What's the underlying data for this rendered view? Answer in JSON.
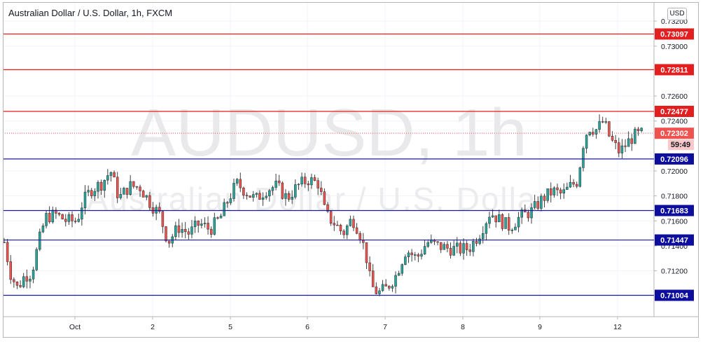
{
  "header": {
    "title": "Australian Dollar / U.S. Dollar, 1h, FXCM",
    "currency_badge": "USD"
  },
  "watermark": {
    "symbol": "AUDUSD, 1h",
    "name": "Australian Dollar / U.S. Dolla"
  },
  "countdown": "59:49",
  "colors": {
    "up_candle": "#26a69a",
    "down_candle": "#ef5350",
    "resistance_line": "#e31e1e",
    "support_line": "#1a1a9e",
    "current_price_line": "#ef5350",
    "grid": "#f0f3fa"
  },
  "chart_data": {
    "type": "candlestick",
    "title": "Australian Dollar / U.S. Dollar, 1h, FXCM",
    "x_axis": {
      "ticks": [
        "Oct",
        "2",
        "5",
        "6",
        "7",
        "8",
        "9",
        "12"
      ]
    },
    "y_axis": {
      "range": [
        0.7092,
        0.7325
      ],
      "ticks": [
        "0.73200",
        "0.73000",
        "0.72600",
        "0.72400",
        "0.72000",
        "0.71800",
        "0.71600",
        "0.71400",
        "0.71200"
      ]
    },
    "current_price": 0.72302,
    "current_price_label": "0.72302",
    "resistance_levels": [
      {
        "value": 0.73097,
        "label": "0.73097"
      },
      {
        "value": 0.72811,
        "label": "0.72811"
      },
      {
        "value": 0.72477,
        "label": "0.72477"
      }
    ],
    "support_levels": [
      {
        "value": 0.72096,
        "label": "0.72096"
      },
      {
        "value": 0.71683,
        "label": "0.71683"
      },
      {
        "value": 0.71447,
        "label": "0.71447"
      },
      {
        "value": 0.71004,
        "label": "0.71004"
      }
    ],
    "price_path": [
      {
        "x": 6,
        "p": 0.7143
      },
      {
        "x": 15,
        "p": 0.7118
      },
      {
        "x": 25,
        "p": 0.7106
      },
      {
        "x": 35,
        "p": 0.7116
      },
      {
        "x": 45,
        "p": 0.7118
      },
      {
        "x": 55,
        "p": 0.7142
      },
      {
        "x": 65,
        "p": 0.7163
      },
      {
        "x": 80,
        "p": 0.7165
      },
      {
        "x": 95,
        "p": 0.716
      },
      {
        "x": 110,
        "p": 0.716
      },
      {
        "x": 118,
        "p": 0.7175
      },
      {
        "x": 130,
        "p": 0.7185
      },
      {
        "x": 145,
        "p": 0.719
      },
      {
        "x": 158,
        "p": 0.72
      },
      {
        "x": 170,
        "p": 0.7178
      },
      {
        "x": 185,
        "p": 0.7188
      },
      {
        "x": 200,
        "p": 0.7187
      },
      {
        "x": 215,
        "p": 0.7174
      },
      {
        "x": 228,
        "p": 0.7165
      },
      {
        "x": 240,
        "p": 0.7143
      },
      {
        "x": 255,
        "p": 0.7155
      },
      {
        "x": 270,
        "p": 0.715
      },
      {
        "x": 285,
        "p": 0.7158
      },
      {
        "x": 300,
        "p": 0.7153
      },
      {
        "x": 315,
        "p": 0.7163
      },
      {
        "x": 325,
        "p": 0.7176
      },
      {
        "x": 338,
        "p": 0.719
      },
      {
        "x": 350,
        "p": 0.7184
      },
      {
        "x": 365,
        "p": 0.7177
      },
      {
        "x": 380,
        "p": 0.7185
      },
      {
        "x": 395,
        "p": 0.7188
      },
      {
        "x": 410,
        "p": 0.7178
      },
      {
        "x": 425,
        "p": 0.7188
      },
      {
        "x": 440,
        "p": 0.7193
      },
      {
        "x": 455,
        "p": 0.719
      },
      {
        "x": 465,
        "p": 0.7165
      },
      {
        "x": 478,
        "p": 0.7158
      },
      {
        "x": 490,
        "p": 0.715
      },
      {
        "x": 503,
        "p": 0.7162
      },
      {
        "x": 512,
        "p": 0.7153
      },
      {
        "x": 522,
        "p": 0.7135
      },
      {
        "x": 530,
        "p": 0.7108
      },
      {
        "x": 540,
        "p": 0.7102
      },
      {
        "x": 552,
        "p": 0.7106
      },
      {
        "x": 565,
        "p": 0.7116
      },
      {
        "x": 580,
        "p": 0.7137
      },
      {
        "x": 595,
        "p": 0.713
      },
      {
        "x": 610,
        "p": 0.7143
      },
      {
        "x": 625,
        "p": 0.714
      },
      {
        "x": 640,
        "p": 0.7138
      },
      {
        "x": 655,
        "p": 0.7137
      },
      {
        "x": 670,
        "p": 0.7138
      },
      {
        "x": 685,
        "p": 0.715
      },
      {
        "x": 700,
        "p": 0.7167
      },
      {
        "x": 715,
        "p": 0.716
      },
      {
        "x": 728,
        "p": 0.7155
      },
      {
        "x": 742,
        "p": 0.7163
      },
      {
        "x": 760,
        "p": 0.7168
      },
      {
        "x": 775,
        "p": 0.7178
      },
      {
        "x": 790,
        "p": 0.7184
      },
      {
        "x": 803,
        "p": 0.7181
      },
      {
        "x": 815,
        "p": 0.7188
      },
      {
        "x": 825,
        "p": 0.7192
      },
      {
        "x": 832,
        "p": 0.722
      },
      {
        "x": 840,
        "p": 0.7235
      },
      {
        "x": 852,
        "p": 0.7233
      },
      {
        "x": 862,
        "p": 0.724
      },
      {
        "x": 872,
        "p": 0.7225
      },
      {
        "x": 885,
        "p": 0.7215
      },
      {
        "x": 895,
        "p": 0.7222
      },
      {
        "x": 905,
        "p": 0.7228
      },
      {
        "x": 918,
        "p": 0.723
      }
    ]
  }
}
